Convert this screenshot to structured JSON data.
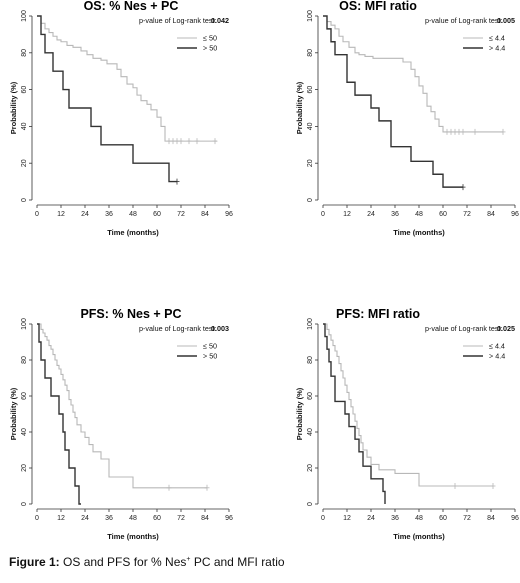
{
  "caption": {
    "label": "Figure 1:",
    "text_before": "OS and PFS for % Nes",
    "superscript": "+",
    "text_after": " PC and MFI ratio"
  },
  "chart_data": [
    {
      "type": "line",
      "title": "OS: % Nes + PC",
      "pvalue_label": "p-value of Log-rank test:",
      "pvalue": "0.042",
      "xlabel": "Time (months)",
      "ylabel": "Probability (%)",
      "xlim": [
        0,
        96
      ],
      "ylim": [
        0,
        100
      ],
      "xticks": [
        0,
        12,
        24,
        36,
        48,
        60,
        72,
        84,
        96
      ],
      "yticks": [
        0,
        20,
        40,
        60,
        80,
        100
      ],
      "series": [
        {
          "name": "≤ 50",
          "color": "#b8b8b8",
          "x": [
            0,
            2,
            4,
            6,
            8,
            10,
            12,
            15,
            18,
            22,
            25,
            28,
            32,
            35,
            40,
            42,
            45,
            48,
            50,
            52,
            55,
            57,
            60,
            62,
            64,
            90
          ],
          "y": [
            100,
            96,
            93,
            91,
            89,
            87,
            86,
            84,
            83,
            81,
            79,
            77,
            76,
            74,
            71,
            67,
            63,
            61,
            57,
            54,
            52,
            49,
            45,
            40,
            32,
            32
          ],
          "censored_x": [
            66,
            68,
            70,
            72,
            76,
            80,
            89
          ]
        },
        {
          "name": "> 50",
          "color": "#333333",
          "x": [
            0,
            2,
            4,
            8,
            13,
            16,
            22,
            27,
            32,
            40,
            48,
            56,
            62,
            66,
            70
          ],
          "y": [
            100,
            90,
            80,
            70,
            60,
            50,
            50,
            40,
            30,
            30,
            20,
            20,
            20,
            10,
            10
          ],
          "censored_x": [
            70
          ]
        }
      ]
    },
    {
      "type": "line",
      "title": "OS: MFI ratio",
      "pvalue_label": "p-value of Log-rank test:",
      "pvalue": "0.005",
      "xlabel": "Time (months)",
      "ylabel": "Probability (%)",
      "xlim": [
        0,
        96
      ],
      "ylim": [
        0,
        100
      ],
      "xticks": [
        0,
        12,
        24,
        36,
        48,
        60,
        72,
        84,
        96
      ],
      "yticks": [
        0,
        20,
        40,
        60,
        80,
        100
      ],
      "series": [
        {
          "name": "≤ 4.4",
          "color": "#b8b8b8",
          "x": [
            0,
            2,
            4,
            6,
            8,
            10,
            13,
            16,
            18,
            21,
            25,
            30,
            36,
            40,
            44,
            46,
            48,
            50,
            52,
            54,
            56,
            58,
            60,
            90
          ],
          "y": [
            100,
            97,
            95,
            93,
            89,
            86,
            83,
            80,
            79,
            78,
            77,
            77,
            77,
            75,
            71,
            67,
            62,
            58,
            51,
            48,
            44,
            40,
            37,
            37
          ],
          "censored_x": [
            62,
            64,
            66,
            68,
            70,
            76,
            90
          ]
        },
        {
          "name": "> 4.4",
          "color": "#333333",
          "x": [
            0,
            2,
            4,
            6,
            12,
            16,
            24,
            28,
            34,
            44,
            55,
            60,
            66,
            70
          ],
          "y": [
            100,
            93,
            86,
            79,
            64,
            57,
            50,
            43,
            29,
            21,
            14,
            7,
            7,
            7
          ],
          "censored_x": [
            70
          ]
        }
      ]
    },
    {
      "type": "line",
      "title": "PFS: % Nes + PC",
      "pvalue_label": "p-value of Log-rank test:",
      "pvalue": "0.003",
      "xlabel": "Time (months)",
      "ylabel": "Probability (%)",
      "xlim": [
        0,
        96
      ],
      "ylim": [
        0,
        100
      ],
      "xticks": [
        0,
        12,
        24,
        36,
        48,
        60,
        72,
        84,
        96
      ],
      "yticks": [
        0,
        20,
        40,
        60,
        80,
        100
      ],
      "series": [
        {
          "name": "≤ 50",
          "color": "#b8b8b8",
          "x": [
            0,
            2,
            3,
            4,
            5,
            6,
            7,
            8,
            9,
            10,
            11,
            12,
            13,
            14,
            15,
            16,
            17,
            18,
            19,
            20,
            22,
            24,
            26,
            28,
            32,
            36,
            48,
            85
          ],
          "y": [
            100,
            97,
            95,
            93,
            91,
            88,
            86,
            83,
            80,
            77,
            75,
            72,
            69,
            66,
            63,
            58,
            55,
            51,
            48,
            44,
            40,
            37,
            33,
            29,
            25,
            15,
            9,
            9
          ],
          "censored_x": [
            66,
            85
          ]
        },
        {
          "name": "> 50",
          "color": "#333333",
          "x": [
            0,
            1,
            2,
            4,
            7,
            11,
            13,
            14,
            16,
            19,
            21,
            22
          ],
          "y": [
            100,
            90,
            80,
            70,
            60,
            50,
            40,
            30,
            20,
            10,
            0,
            0
          ],
          "censored_x": []
        }
      ]
    },
    {
      "type": "line",
      "title": "PFS: MFI ratio",
      "pvalue_label": "p-value of Log-rank test:",
      "pvalue": "0.025",
      "xlabel": "Time (months)",
      "ylabel": "Probability (%)",
      "xlim": [
        0,
        96
      ],
      "ylim": [
        0,
        100
      ],
      "xticks": [
        0,
        12,
        24,
        36,
        48,
        60,
        72,
        84,
        96
      ],
      "yticks": [
        0,
        20,
        40,
        60,
        80,
        100
      ],
      "series": [
        {
          "name": "≤ 4.4",
          "color": "#b8b8b8",
          "x": [
            0,
            2,
            3,
            4,
            5,
            6,
            7,
            8,
            9,
            10,
            11,
            12,
            13,
            14,
            15,
            16,
            17,
            18,
            19,
            20,
            22,
            24,
            28,
            36,
            48,
            85
          ],
          "y": [
            100,
            97,
            94,
            91,
            88,
            85,
            82,
            78,
            74,
            70,
            66,
            62,
            58,
            54,
            50,
            46,
            42,
            38,
            34,
            30,
            26,
            22,
            19,
            17,
            10,
            10
          ],
          "censored_x": [
            66,
            85
          ]
        },
        {
          "name": "> 4.4",
          "color": "#333333",
          "x": [
            0,
            1,
            2,
            3,
            4,
            6,
            9,
            11,
            13,
            16,
            18,
            20,
            24,
            30,
            31
          ],
          "y": [
            100,
            93,
            86,
            79,
            71,
            57,
            57,
            50,
            43,
            36,
            29,
            21,
            14,
            7,
            0
          ],
          "censored_x": []
        }
      ]
    }
  ]
}
